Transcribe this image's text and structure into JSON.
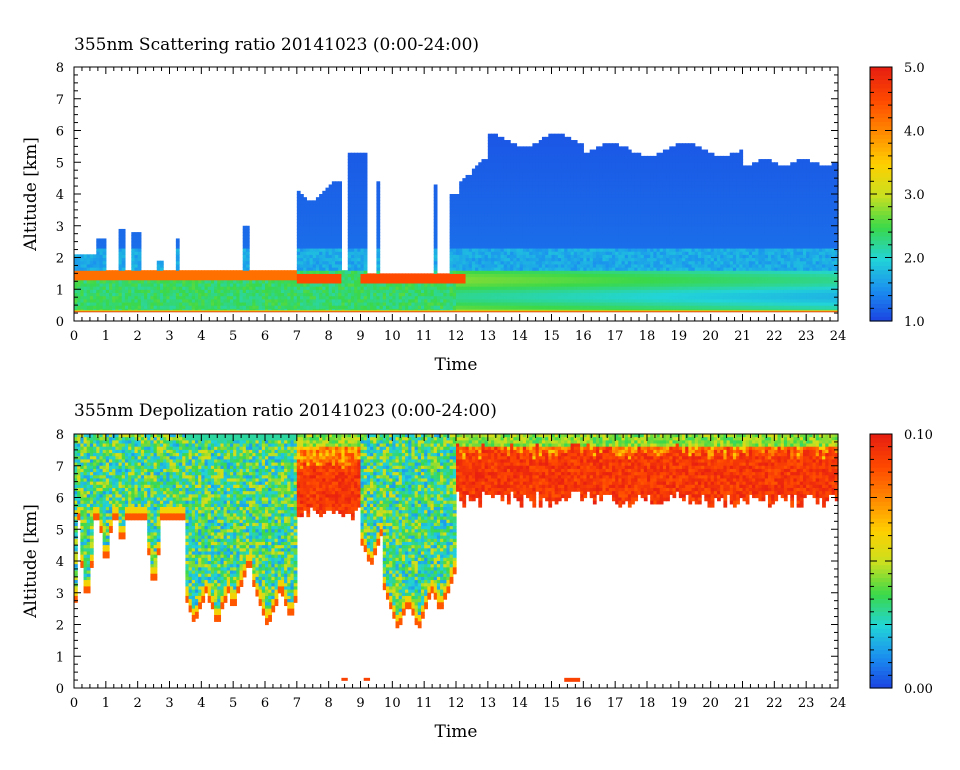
{
  "chart_data": [
    {
      "type": "heatmap",
      "title": "355nm Scattering ratio  20141023 (0:00-24:00)",
      "xlabel": "Time",
      "ylabel": "Altitude [km]",
      "xlim": [
        0,
        24
      ],
      "ylim": [
        0,
        8
      ],
      "x_ticks": [
        "0",
        "1",
        "2",
        "3",
        "4",
        "5",
        "6",
        "7",
        "8",
        "9",
        "10",
        "11",
        "12",
        "13",
        "14",
        "15",
        "16",
        "17",
        "18",
        "19",
        "20",
        "21",
        "22",
        "23",
        "24"
      ],
      "y_ticks": [
        "0",
        "1",
        "2",
        "3",
        "4",
        "5",
        "6",
        "7",
        "8"
      ],
      "colorbar": {
        "min": 1.0,
        "max": 5.0,
        "tick_labels": [
          "5.0",
          "4.0",
          "3.0",
          "2.0",
          "1.0"
        ],
        "tick_values": [
          5.0,
          4.0,
          3.0,
          2.0,
          1.0
        ],
        "colors": [
          "#1c3fe0",
          "#1a8cf0",
          "#22d4d8",
          "#3ad84a",
          "#c8e020",
          "#ffd000",
          "#ff8a00",
          "#ff4a00",
          "#e82010"
        ]
      },
      "features": {
        "boundary_layer_top_km": 1.5,
        "surface_layer_km": 0.3,
        "cloud_regions": [
          {
            "t_start": 0.0,
            "t_end": 7.0,
            "alt_low": 0.3,
            "alt_high": 2.2,
            "value": 2.2
          },
          {
            "t_start": 7.0,
            "t_end": 8.4,
            "alt_low": 1.5,
            "alt_high": 4.2,
            "value": 1.3
          },
          {
            "t_start": 8.6,
            "t_end": 9.2,
            "alt_low": 1.5,
            "alt_high": 5.3,
            "value": 1.3
          },
          {
            "t_start": 11.9,
            "t_end": 24.0,
            "alt_low": 1.3,
            "alt_high": 5.6,
            "value": 1.3
          }
        ]
      }
    },
    {
      "type": "heatmap",
      "title": "355nm Depolization ratio  20141023 (0:00-24:00)",
      "xlabel": "Time",
      "ylabel": "Altitude [km]",
      "xlim": [
        0,
        24
      ],
      "ylim": [
        0,
        8
      ],
      "x_ticks": [
        "0",
        "1",
        "2",
        "3",
        "4",
        "5",
        "6",
        "7",
        "8",
        "9",
        "10",
        "11",
        "12",
        "13",
        "14",
        "15",
        "16",
        "17",
        "18",
        "19",
        "20",
        "21",
        "22",
        "23",
        "24"
      ],
      "y_ticks": [
        "0",
        "1",
        "2",
        "3",
        "4",
        "5",
        "6",
        "7",
        "8"
      ],
      "colorbar": {
        "min": 0.0,
        "max": 0.1,
        "tick_labels": [
          "0.10",
          "0.00"
        ],
        "tick_values": [
          0.1,
          0.0
        ],
        "colors": [
          "#1c3fe0",
          "#1a8cf0",
          "#22d4d8",
          "#3ad84a",
          "#c8e020",
          "#ffd000",
          "#ff8a00",
          "#ff4a00",
          "#e82010"
        ]
      },
      "features": {
        "noise_floor_km": [
          {
            "t_start": 0.0,
            "t_end": 3.5,
            "alt_low": 2.5
          },
          {
            "t_start": 3.5,
            "t_end": 7.0,
            "alt_low": 2.0
          },
          {
            "t_start": 7.0,
            "t_end": 9.0,
            "alt_low": 5.3
          },
          {
            "t_start": 9.0,
            "t_end": 12.0,
            "alt_low": 1.8
          },
          {
            "t_start": 12.0,
            "t_end": 24.0,
            "alt_low": 5.6
          }
        ]
      }
    }
  ]
}
